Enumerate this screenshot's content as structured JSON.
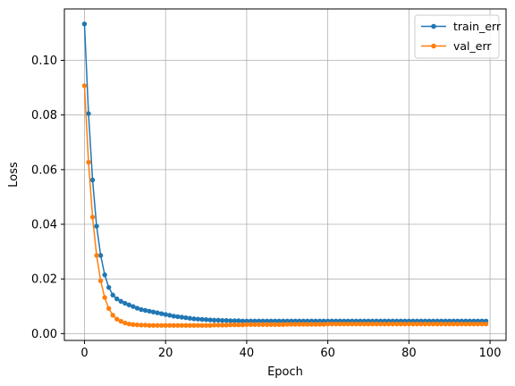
{
  "chart_data": {
    "type": "line",
    "title": "",
    "xlabel": "Epoch",
    "ylabel": "Loss",
    "xlim": [
      -4.95,
      103.95
    ],
    "ylim": [
      -0.0025,
      0.1188
    ],
    "xticks": [
      0,
      20,
      40,
      60,
      80,
      100
    ],
    "xtick_labels": [
      "0",
      "20",
      "40",
      "60",
      "80",
      "100"
    ],
    "yticks": [
      0.0,
      0.02,
      0.04,
      0.06,
      0.08,
      0.1
    ],
    "ytick_labels": [
      "0.00",
      "0.02",
      "0.04",
      "0.06",
      "0.08",
      "0.10"
    ],
    "grid": true,
    "legend_position": "top-right",
    "series": [
      {
        "name": "train_err",
        "color": "#1f77b4",
        "marker": "circle",
        "x": [
          0,
          1,
          2,
          3,
          4,
          5,
          6,
          7,
          8,
          9,
          10,
          11,
          12,
          13,
          14,
          15,
          16,
          17,
          18,
          19,
          20,
          21,
          22,
          23,
          24,
          25,
          26,
          27,
          28,
          29,
          30,
          31,
          32,
          33,
          34,
          35,
          36,
          37,
          38,
          39,
          40,
          41,
          42,
          43,
          44,
          45,
          46,
          47,
          48,
          49,
          50,
          51,
          52,
          53,
          54,
          55,
          56,
          57,
          58,
          59,
          60,
          61,
          62,
          63,
          64,
          65,
          66,
          67,
          68,
          69,
          70,
          71,
          72,
          73,
          74,
          75,
          76,
          77,
          78,
          79,
          80,
          81,
          82,
          83,
          84,
          85,
          86,
          87,
          88,
          89,
          90,
          91,
          92,
          93,
          94,
          95,
          96,
          97,
          98,
          99
        ],
        "values": [
          0.1133,
          0.0805,
          0.0562,
          0.0393,
          0.0286,
          0.0215,
          0.0169,
          0.0141,
          0.0127,
          0.0118,
          0.0111,
          0.0105,
          0.0099,
          0.0093,
          0.0088,
          0.0085,
          0.0082,
          0.0079,
          0.0076,
          0.0073,
          0.007,
          0.0067,
          0.0064,
          0.0062,
          0.006,
          0.0058,
          0.0056,
          0.0054,
          0.0053,
          0.0052,
          0.0051,
          0.005,
          0.0049,
          0.0049,
          0.0048,
          0.0048,
          0.0047,
          0.0047,
          0.0047,
          0.0046,
          0.0046,
          0.0046,
          0.0046,
          0.0046,
          0.0046,
          0.0046,
          0.0046,
          0.0046,
          0.0046,
          0.0046,
          0.0046,
          0.0046,
          0.0046,
          0.0046,
          0.0046,
          0.0046,
          0.0046,
          0.0046,
          0.0046,
          0.0046,
          0.0046,
          0.0046,
          0.0046,
          0.0046,
          0.0046,
          0.0046,
          0.0046,
          0.0046,
          0.0046,
          0.0046,
          0.0046,
          0.0046,
          0.0046,
          0.0046,
          0.0046,
          0.0046,
          0.0046,
          0.0046,
          0.0046,
          0.0046,
          0.0046,
          0.0046,
          0.0046,
          0.0046,
          0.0046,
          0.0046,
          0.0046,
          0.0046,
          0.0046,
          0.0046,
          0.0046,
          0.0046,
          0.0046,
          0.0046,
          0.0046,
          0.0046,
          0.0046,
          0.0046,
          0.0046,
          0.0046
        ]
      },
      {
        "name": "val_err",
        "color": "#ff7f0e",
        "marker": "circle",
        "x": [
          0,
          1,
          2,
          3,
          4,
          5,
          6,
          7,
          8,
          9,
          10,
          11,
          12,
          13,
          14,
          15,
          16,
          17,
          18,
          19,
          20,
          21,
          22,
          23,
          24,
          25,
          26,
          27,
          28,
          29,
          30,
          31,
          32,
          33,
          34,
          35,
          36,
          37,
          38,
          39,
          40,
          41,
          42,
          43,
          44,
          45,
          46,
          47,
          48,
          49,
          50,
          51,
          52,
          53,
          54,
          55,
          56,
          57,
          58,
          59,
          60,
          61,
          62,
          63,
          64,
          65,
          66,
          67,
          68,
          69,
          70,
          71,
          72,
          73,
          74,
          75,
          76,
          77,
          78,
          79,
          80,
          81,
          82,
          83,
          84,
          85,
          86,
          87,
          88,
          89,
          90,
          91,
          92,
          93,
          94,
          95,
          96,
          97,
          98,
          99
        ],
        "values": [
          0.0907,
          0.0627,
          0.0426,
          0.0286,
          0.0193,
          0.0132,
          0.0092,
          0.0067,
          0.0053,
          0.0045,
          0.0039,
          0.0035,
          0.0033,
          0.0032,
          0.0031,
          0.0031,
          0.003,
          0.003,
          0.003,
          0.003,
          0.003,
          0.003,
          0.003,
          0.003,
          0.003,
          0.003,
          0.003,
          0.003,
          0.003,
          0.003,
          0.003,
          0.003,
          0.0031,
          0.0031,
          0.0031,
          0.0031,
          0.0032,
          0.0032,
          0.0032,
          0.0032,
          0.0033,
          0.0033,
          0.0033,
          0.0033,
          0.0033,
          0.0033,
          0.0033,
          0.0033,
          0.0033,
          0.0033,
          0.0034,
          0.0034,
          0.0034,
          0.0034,
          0.0034,
          0.0034,
          0.0034,
          0.0034,
          0.0034,
          0.0034,
          0.0035,
          0.0035,
          0.0035,
          0.0035,
          0.0035,
          0.0035,
          0.0035,
          0.0035,
          0.0035,
          0.0035,
          0.0035,
          0.0035,
          0.0035,
          0.0035,
          0.0035,
          0.0035,
          0.0035,
          0.0035,
          0.0035,
          0.0035,
          0.0035,
          0.0035,
          0.0035,
          0.0035,
          0.0035,
          0.0035,
          0.0035,
          0.0035,
          0.0035,
          0.0035,
          0.0035,
          0.0035,
          0.0035,
          0.0035,
          0.0035,
          0.0035,
          0.0035,
          0.0035,
          0.0035,
          0.0035
        ]
      }
    ]
  }
}
